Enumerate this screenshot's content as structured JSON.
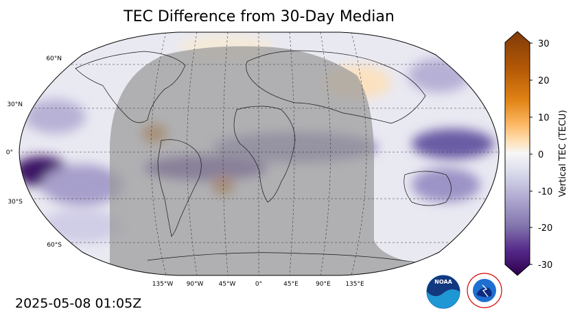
{
  "title": "TEC Difference from 30-Day Median",
  "timestamp": "2025-05-08 01:05Z",
  "lat_labels": [
    "60°N",
    "30°N",
    "0°",
    "30°S",
    "60°S"
  ],
  "lon_labels": [
    "135°W",
    "90°W",
    "45°W",
    "0°",
    "45°E",
    "90°E",
    "135°E"
  ],
  "colorbar": {
    "label": "Vertical TEC (TECU)",
    "min": -30,
    "max": 30,
    "ticks": [
      "30",
      "20",
      "10",
      "0",
      "-10",
      "-20",
      "-30"
    ],
    "high_color": "#7f3b08",
    "mid_color": "#f7f7f7",
    "low_color": "#2d004b"
  },
  "logos": {
    "noaa": "NOAA",
    "nws": "NATIONAL WEATHER SERVICE"
  },
  "colors": {
    "night_shade": "#9a9a9a"
  }
}
